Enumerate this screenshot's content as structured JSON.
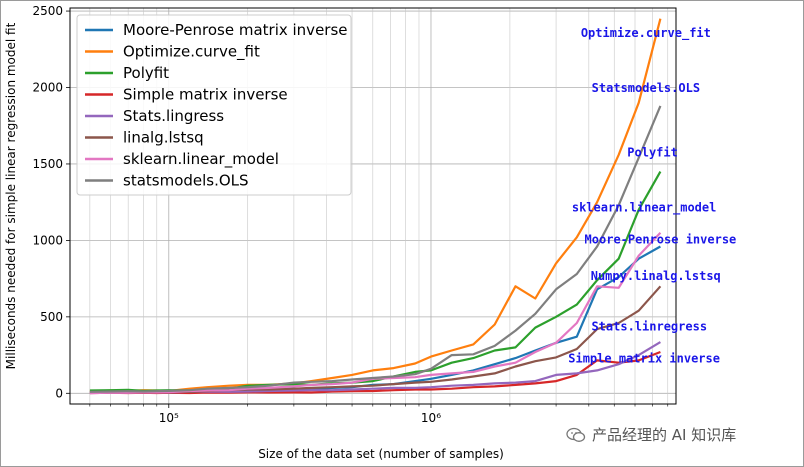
{
  "chart_data": {
    "type": "line",
    "xlabel": "Size of the data set (number of samples)",
    "ylabel": "Milliseconds needed for simple linear regression model fit",
    "xscale": "log",
    "xlim": [
      42000,
      8600000
    ],
    "ylim": [
      -70,
      2520
    ],
    "yticks": [
      0,
      500,
      1000,
      1500,
      2000,
      2500
    ],
    "ytick_labels": [
      "0",
      "500",
      "1000",
      "1500",
      "2000",
      "2500"
    ],
    "xticks": [
      100000,
      1000000
    ],
    "xtick_labels": [
      "10⁵",
      "10⁶"
    ],
    "grid": true,
    "legend_position": "top-left",
    "x": [
      50000,
      60000,
      70000,
      80000,
      90000,
      100000,
      120000,
      140000,
      170000,
      200000,
      240000,
      300000,
      350000,
      420000,
      500000,
      600000,
      720000,
      870000,
      1000000,
      1200000,
      1450000,
      1750000,
      2100000,
      2500000,
      3000000,
      3600000,
      4300000,
      5200000,
      6200000,
      7500000
    ],
    "series": [
      {
        "name": "Moore-Penrose matrix inverse",
        "color": "#1f77b4",
        "values": [
          8,
          10,
          12,
          8,
          10,
          12,
          10,
          14,
          16,
          25,
          25,
          30,
          22,
          35,
          40,
          55,
          60,
          80,
          95,
          120,
          150,
          190,
          230,
          280,
          330,
          370,
          680,
          760,
          880,
          960
        ]
      },
      {
        "name": "Optimize.curve_fit",
        "color": "#ff7f0e",
        "values": [
          15,
          18,
          16,
          20,
          18,
          15,
          30,
          40,
          50,
          55,
          55,
          65,
          80,
          100,
          120,
          150,
          165,
          195,
          240,
          280,
          320,
          450,
          700,
          620,
          850,
          1020,
          1250,
          1560,
          1900,
          2450
        ]
      },
      {
        "name": "Polyfit",
        "color": "#2ca02c",
        "values": [
          18,
          20,
          22,
          16,
          18,
          20,
          18,
          28,
          30,
          50,
          55,
          60,
          55,
          65,
          70,
          80,
          110,
          140,
          150,
          200,
          230,
          280,
          300,
          430,
          500,
          580,
          740,
          880,
          1200,
          1450
        ]
      },
      {
        "name": "Simple matrix inverse",
        "color": "#d62728",
        "values": [
          2,
          3,
          2,
          3,
          2,
          3,
          2,
          5,
          4,
          6,
          5,
          6,
          5,
          12,
          14,
          15,
          20,
          25,
          25,
          30,
          40,
          45,
          55,
          65,
          80,
          120,
          215,
          200,
          215,
          270
        ]
      },
      {
        "name": "Stats.lingress",
        "color": "#9467bd",
        "values": [
          3,
          5,
          4,
          6,
          5,
          5,
          10,
          12,
          10,
          12,
          15,
          18,
          20,
          20,
          25,
          30,
          35,
          35,
          40,
          50,
          55,
          65,
          70,
          80,
          120,
          130,
          150,
          190,
          250,
          335
        ]
      },
      {
        "name": "linalg.lstsq",
        "color": "#8c564b",
        "values": [
          5,
          6,
          8,
          7,
          6,
          8,
          10,
          15,
          20,
          25,
          25,
          30,
          35,
          40,
          45,
          50,
          60,
          70,
          75,
          90,
          110,
          130,
          175,
          210,
          235,
          290,
          420,
          460,
          540,
          700
        ]
      },
      {
        "name": "sklearn.linear_model",
        "color": "#e377c2",
        "values": [
          0,
          5,
          4,
          6,
          6,
          8,
          15,
          18,
          20,
          30,
          35,
          45,
          55,
          60,
          70,
          95,
          100,
          105,
          120,
          130,
          140,
          175,
          200,
          270,
          330,
          460,
          700,
          690,
          900,
          1050
        ]
      },
      {
        "name": "statsmodels.OLS",
        "color": "#7f7f7f",
        "values": [
          10,
          12,
          14,
          12,
          14,
          16,
          20,
          30,
          35,
          40,
          50,
          70,
          75,
          80,
          90,
          100,
          110,
          125,
          160,
          250,
          255,
          310,
          410,
          520,
          680,
          780,
          960,
          1230,
          1540,
          1880
        ]
      }
    ],
    "annotations": [
      {
        "text": "Optimize.curve_fit",
        "x": 6600000,
        "y": 2330
      },
      {
        "text": "Statsmodels.OLS",
        "x": 6600000,
        "y": 1970
      },
      {
        "text": "Polyfit",
        "x": 7000000,
        "y": 1550
      },
      {
        "text": "sklearn.linear_model",
        "x": 6500000,
        "y": 1190
      },
      {
        "text": "Moore-Penrose inverse",
        "x": 7500000,
        "y": 980
      },
      {
        "text": "Numpy.linalg.lstsq",
        "x": 7200000,
        "y": 740
      },
      {
        "text": "Stats.linregress",
        "x": 6800000,
        "y": 410
      },
      {
        "text": "Simple matrix inverse",
        "x": 6500000,
        "y": 200
      }
    ]
  },
  "watermark": {
    "text": "产品经理的 AI 知识库",
    "icon": "wechat-icon"
  }
}
